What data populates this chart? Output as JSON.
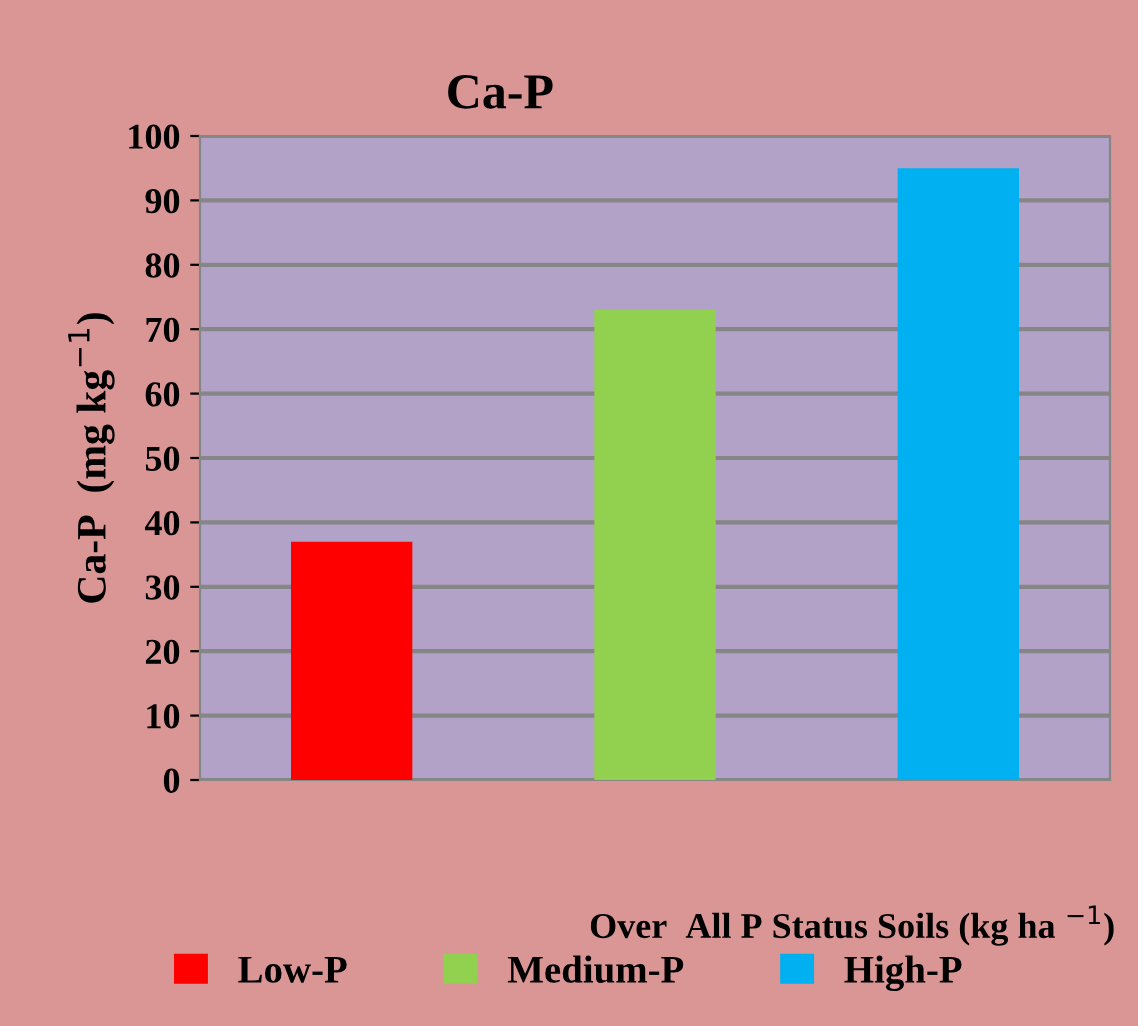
{
  "chart_data": {
    "type": "bar",
    "title": "Ca-P",
    "ylabel": "Ca-P  (mg kg$^{−1}$)",
    "xlabel": "Over  All P Status Soils (kg ha $^{−1}$)",
    "categories": [
      null,
      null,
      null
    ],
    "series": [
      {
        "name": "Low-P",
        "color": "#ff0000",
        "values": [
          37,
          null,
          null
        ]
      },
      {
        "name": "Medium-P",
        "color": "#92d050",
        "values": [
          null,
          73,
          null
        ]
      },
      {
        "name": "High-P",
        "color": "#00b0f0",
        "values": [
          null,
          null,
          95
        ]
      }
    ],
    "ylim": [
      0,
      100
    ],
    "yticks": [
      0,
      10,
      20,
      30,
      40,
      50,
      60,
      70,
      80,
      90,
      100
    ],
    "grid": "y",
    "legend": "bottom"
  }
}
